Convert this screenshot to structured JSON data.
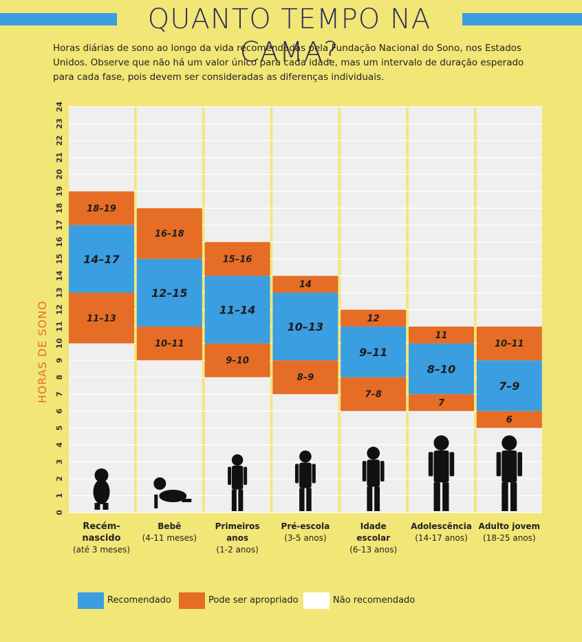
{
  "header": {
    "title": "QUANTO TEMPO NA CAMA?",
    "subtitle": "Horas diárias de sono ao longo da vida recomendadas pela Fundação Nacional do Sono, nos Estados Unidos. Observe que não há um valor único para cada idade, mas um intervalo de duração esperado para cada fase, pois devem ser consideradas as diferenças individuais."
  },
  "colors": {
    "background": "#f2e677",
    "recommended": "#3b9ee0",
    "appropriate": "#e56d26",
    "not_recommended": "#ffffff",
    "grid_panel": "#efefef",
    "ylabel": "#e56d26"
  },
  "chart_data": {
    "type": "bar",
    "ylabel": "HORAS DE SONO",
    "ylim": [
      0,
      24
    ],
    "yticks": [
      "0",
      "1",
      "2",
      "3",
      "4",
      "5",
      "6",
      "7",
      "8",
      "9",
      "10",
      "11",
      "12",
      "13",
      "14",
      "15",
      "16",
      "17",
      "18",
      "19",
      "20",
      "21",
      "22",
      "23",
      "24"
    ],
    "grid": true,
    "categories": [
      {
        "name": "Recém-\nnascido",
        "range": "(até 3 meses)",
        "icon": "newborn-silhouette-icon",
        "segments": [
          {
            "type": "appropriate",
            "from": 10,
            "to": 13,
            "label": "11-13"
          },
          {
            "type": "recommended",
            "from": 13,
            "to": 17,
            "label": "14-17"
          },
          {
            "type": "appropriate",
            "from": 17,
            "to": 19,
            "label": "18-19"
          }
        ]
      },
      {
        "name": "Bebê",
        "range": "(4-11 meses)",
        "icon": "crawling-baby-silhouette-icon",
        "segments": [
          {
            "type": "appropriate",
            "from": 9,
            "to": 11,
            "label": "10-11"
          },
          {
            "type": "recommended",
            "from": 11,
            "to": 15,
            "label": "12-15"
          },
          {
            "type": "appropriate",
            "from": 15,
            "to": 18,
            "label": "16-18"
          }
        ]
      },
      {
        "name": "Primeiros\nanos",
        "range": "(1-2 anos)",
        "icon": "toddler-silhouette-icon",
        "segments": [
          {
            "type": "appropriate",
            "from": 8,
            "to": 10,
            "label": "9-10"
          },
          {
            "type": "recommended",
            "from": 10,
            "to": 14,
            "label": "11-14"
          },
          {
            "type": "appropriate",
            "from": 14,
            "to": 16,
            "label": "15-16"
          }
        ]
      },
      {
        "name": "Pré-escola",
        "range": "(3-5 anos)",
        "icon": "preschooler-silhouette-icon",
        "segments": [
          {
            "type": "appropriate",
            "from": 7,
            "to": 9,
            "label": "8-9"
          },
          {
            "type": "recommended",
            "from": 9,
            "to": 13,
            "label": "10-13"
          },
          {
            "type": "appropriate",
            "from": 13,
            "to": 14,
            "label": "14"
          }
        ]
      },
      {
        "name": "Idade\nescolar",
        "range": "(6-13 anos)",
        "icon": "schoolchild-silhouette-icon",
        "segments": [
          {
            "type": "appropriate",
            "from": 6,
            "to": 8,
            "label": "7-8"
          },
          {
            "type": "recommended",
            "from": 8,
            "to": 11,
            "label": "9-11"
          },
          {
            "type": "appropriate",
            "from": 11,
            "to": 12,
            "label": "12"
          }
        ]
      },
      {
        "name": "Adolescência",
        "range": "(14-17 anos)",
        "icon": "teenager-silhouette-icon",
        "segments": [
          {
            "type": "appropriate",
            "from": 6,
            "to": 7,
            "label": "7"
          },
          {
            "type": "recommended",
            "from": 7,
            "to": 10,
            "label": "8-10"
          },
          {
            "type": "appropriate",
            "from": 10,
            "to": 11,
            "label": "11"
          }
        ]
      },
      {
        "name": "Adulto jovem",
        "range": "(18-25 anos)",
        "icon": "young-adult-silhouette-icon",
        "segments": [
          {
            "type": "appropriate",
            "from": 5,
            "to": 6,
            "label": "6"
          },
          {
            "type": "recommended",
            "from": 6,
            "to": 9,
            "label": "7-9"
          },
          {
            "type": "appropriate",
            "from": 9,
            "to": 11,
            "label": "10-11"
          }
        ]
      }
    ],
    "legend": [
      {
        "type": "recommended",
        "label": "Recomendado"
      },
      {
        "type": "appropriate",
        "label": "Pode ser apropriado"
      },
      {
        "type": "not_recommended",
        "label": "Não recomendado"
      }
    ],
    "legend_position": "bottom"
  }
}
